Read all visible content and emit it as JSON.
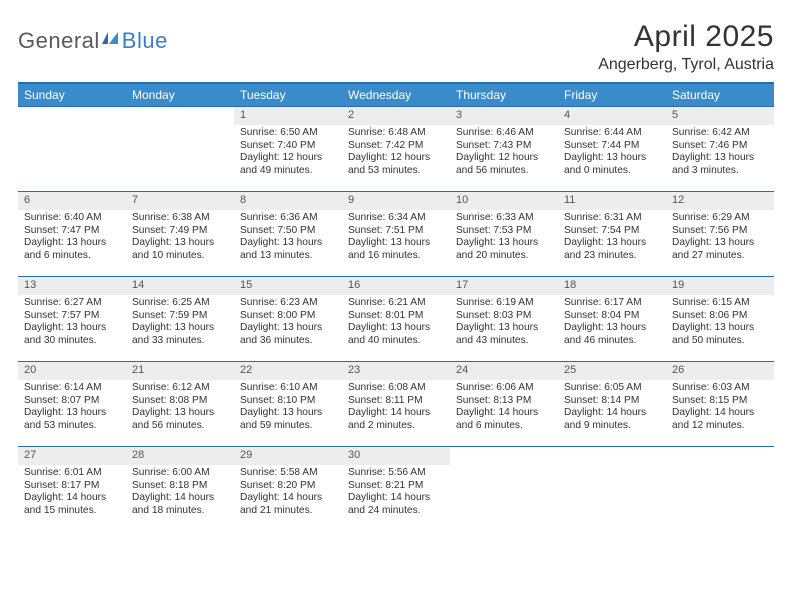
{
  "logo": {
    "text1": "General",
    "text2": "Blue"
  },
  "title": "April 2025",
  "location": "Angerberg, Tyrol, Austria",
  "columns": [
    "Sunday",
    "Monday",
    "Tuesday",
    "Wednesday",
    "Thursday",
    "Friday",
    "Saturday"
  ],
  "colors": {
    "header_bg": "#3a8bc9",
    "header_text": "#ffffff",
    "rule": "#2b6cb0",
    "daynum_bg": "#ededed",
    "text": "#333333",
    "logo_gray": "#5a5a5a",
    "logo_blue": "#3a7fc4"
  },
  "weeks": [
    [
      {
        "empty": true
      },
      {
        "empty": true
      },
      {
        "d": "1",
        "sr": "6:50 AM",
        "ss": "7:40 PM",
        "dl": "Daylight: 12 hours and 49 minutes."
      },
      {
        "d": "2",
        "sr": "6:48 AM",
        "ss": "7:42 PM",
        "dl": "Daylight: 12 hours and 53 minutes."
      },
      {
        "d": "3",
        "sr": "6:46 AM",
        "ss": "7:43 PM",
        "dl": "Daylight: 12 hours and 56 minutes."
      },
      {
        "d": "4",
        "sr": "6:44 AM",
        "ss": "7:44 PM",
        "dl": "Daylight: 13 hours and 0 minutes."
      },
      {
        "d": "5",
        "sr": "6:42 AM",
        "ss": "7:46 PM",
        "dl": "Daylight: 13 hours and 3 minutes."
      }
    ],
    [
      {
        "d": "6",
        "sr": "6:40 AM",
        "ss": "7:47 PM",
        "dl": "Daylight: 13 hours and 6 minutes."
      },
      {
        "d": "7",
        "sr": "6:38 AM",
        "ss": "7:49 PM",
        "dl": "Daylight: 13 hours and 10 minutes."
      },
      {
        "d": "8",
        "sr": "6:36 AM",
        "ss": "7:50 PM",
        "dl": "Daylight: 13 hours and 13 minutes."
      },
      {
        "d": "9",
        "sr": "6:34 AM",
        "ss": "7:51 PM",
        "dl": "Daylight: 13 hours and 16 minutes."
      },
      {
        "d": "10",
        "sr": "6:33 AM",
        "ss": "7:53 PM",
        "dl": "Daylight: 13 hours and 20 minutes."
      },
      {
        "d": "11",
        "sr": "6:31 AM",
        "ss": "7:54 PM",
        "dl": "Daylight: 13 hours and 23 minutes."
      },
      {
        "d": "12",
        "sr": "6:29 AM",
        "ss": "7:56 PM",
        "dl": "Daylight: 13 hours and 27 minutes."
      }
    ],
    [
      {
        "d": "13",
        "sr": "6:27 AM",
        "ss": "7:57 PM",
        "dl": "Daylight: 13 hours and 30 minutes."
      },
      {
        "d": "14",
        "sr": "6:25 AM",
        "ss": "7:59 PM",
        "dl": "Daylight: 13 hours and 33 minutes."
      },
      {
        "d": "15",
        "sr": "6:23 AM",
        "ss": "8:00 PM",
        "dl": "Daylight: 13 hours and 36 minutes."
      },
      {
        "d": "16",
        "sr": "6:21 AM",
        "ss": "8:01 PM",
        "dl": "Daylight: 13 hours and 40 minutes."
      },
      {
        "d": "17",
        "sr": "6:19 AM",
        "ss": "8:03 PM",
        "dl": "Daylight: 13 hours and 43 minutes."
      },
      {
        "d": "18",
        "sr": "6:17 AM",
        "ss": "8:04 PM",
        "dl": "Daylight: 13 hours and 46 minutes."
      },
      {
        "d": "19",
        "sr": "6:15 AM",
        "ss": "8:06 PM",
        "dl": "Daylight: 13 hours and 50 minutes."
      }
    ],
    [
      {
        "d": "20",
        "sr": "6:14 AM",
        "ss": "8:07 PM",
        "dl": "Daylight: 13 hours and 53 minutes."
      },
      {
        "d": "21",
        "sr": "6:12 AM",
        "ss": "8:08 PM",
        "dl": "Daylight: 13 hours and 56 minutes."
      },
      {
        "d": "22",
        "sr": "6:10 AM",
        "ss": "8:10 PM",
        "dl": "Daylight: 13 hours and 59 minutes."
      },
      {
        "d": "23",
        "sr": "6:08 AM",
        "ss": "8:11 PM",
        "dl": "Daylight: 14 hours and 2 minutes."
      },
      {
        "d": "24",
        "sr": "6:06 AM",
        "ss": "8:13 PM",
        "dl": "Daylight: 14 hours and 6 minutes."
      },
      {
        "d": "25",
        "sr": "6:05 AM",
        "ss": "8:14 PM",
        "dl": "Daylight: 14 hours and 9 minutes."
      },
      {
        "d": "26",
        "sr": "6:03 AM",
        "ss": "8:15 PM",
        "dl": "Daylight: 14 hours and 12 minutes."
      }
    ],
    [
      {
        "d": "27",
        "sr": "6:01 AM",
        "ss": "8:17 PM",
        "dl": "Daylight: 14 hours and 15 minutes."
      },
      {
        "d": "28",
        "sr": "6:00 AM",
        "ss": "8:18 PM",
        "dl": "Daylight: 14 hours and 18 minutes."
      },
      {
        "d": "29",
        "sr": "5:58 AM",
        "ss": "8:20 PM",
        "dl": "Daylight: 14 hours and 21 minutes."
      },
      {
        "d": "30",
        "sr": "5:56 AM",
        "ss": "8:21 PM",
        "dl": "Daylight: 14 hours and 24 minutes."
      },
      {
        "empty": true
      },
      {
        "empty": true
      },
      {
        "empty": true
      }
    ]
  ],
  "labels": {
    "sunrise": "Sunrise:",
    "sunset": "Sunset:"
  }
}
